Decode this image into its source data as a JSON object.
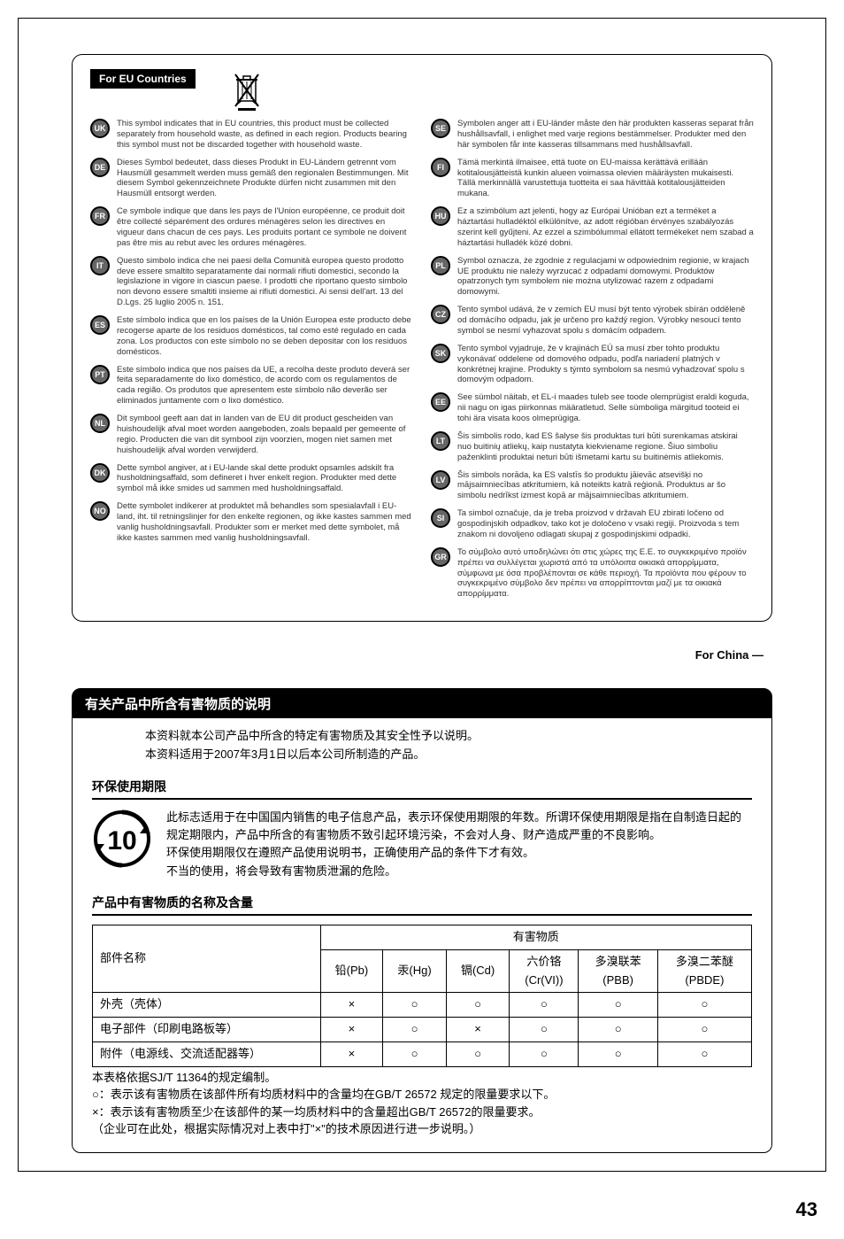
{
  "eu": {
    "header": "For EU Countries",
    "left": [
      {
        "code": "UK",
        "text": "This symbol indicates that in EU countries, this product must be collected separately from household waste, as defined in each region. Products bearing this symbol must not be discarded together with household waste."
      },
      {
        "code": "DE",
        "text": "Dieses Symbol bedeutet, dass dieses Produkt in EU-Ländern getrennt vom Hausmüll gesammelt werden muss gemäß den regionalen Bestimmungen. Mit diesem Symbol gekennzeichnete Produkte dürfen nicht zusammen mit den Hausmüll entsorgt werden."
      },
      {
        "code": "FR",
        "text": "Ce symbole indique que dans les pays de l'Union européenne, ce produit doit être collecté séparément des ordures ménagères selon les directives en vigueur dans chacun de ces pays. Les produits portant ce symbole ne doivent pas être mis au rebut avec les ordures ménagères."
      },
      {
        "code": "IT",
        "text": "Questo simbolo indica che nei paesi della Comunità europea questo prodotto deve essere smaltito separatamente dai normali rifiuti domestici, secondo la legislazione in vigore in ciascun paese. I prodotti che riportano questo simbolo non devono essere smaltiti insieme ai rifiuti domestici. Ai sensi dell'art. 13 del D.Lgs. 25 luglio 2005 n. 151."
      },
      {
        "code": "ES",
        "text": "Este símbolo indica que en los países de la Unión Europea este producto debe recogerse aparte de los residuos domésticos, tal como esté regulado en cada zona. Los productos con este símbolo no se deben depositar con los residuos domésticos."
      },
      {
        "code": "PT",
        "text": "Este símbolo indica que nos países da UE, a recolha deste produto deverá ser feita separadamente do lixo doméstico, de acordo com os regulamentos de cada região. Os produtos que apresentem este símbolo não deverão ser eliminados juntamente com o lixo doméstico."
      },
      {
        "code": "NL",
        "text": "Dit symbool geeft aan dat in landen van de EU dit product gescheiden van huishoudelijk afval moet worden aangeboden, zoals bepaald per gemeente of regio. Producten die van dit symbool zijn voorzien, mogen niet samen met huishoudelijk afval worden verwijderd."
      },
      {
        "code": "DK",
        "text": "Dette symbol angiver, at i EU-lande skal dette produkt opsamles adskilt fra husholdningsaffald, som defineret i hver enkelt region. Produkter med dette symbol må ikke smides ud sammen med husholdningsaffald."
      },
      {
        "code": "NO",
        "text": "Dette symbolet indikerer at produktet må behandles som spesialavfall i EU-land, iht. til retningslinjer for den enkelte regionen, og ikke kastes sammen med vanlig husholdningsavfall. Produkter som er merket med dette symbolet, må ikke kastes sammen med vanlig husholdningsavfall."
      }
    ],
    "right": [
      {
        "code": "SE",
        "text": "Symbolen anger att i EU-länder måste den här produkten kasseras separat från hushållsavfall, i enlighet med varje regions bestämmelser. Produkter med den här symbolen får inte kasseras tillsammans med hushållsavfall."
      },
      {
        "code": "FI",
        "text": "Tämä merkintä ilmaisee, että tuote on EU-maissa kerättävä erillään kotitalousjätteistä kunkin alueen voimassa olevien määräysten mukaisesti. Tällä merkinnällä varustettuja tuotteita ei saa hävittää kotitalousjätteiden mukana."
      },
      {
        "code": "HU",
        "text": "Ez a szimbólum azt jelenti, hogy az Európai Unióban ezt a terméket a háztartási hulladéktól elkülönítve, az adott régióban érvényes szabályozás szerint kell gyűjteni. Az ezzel a szimbólummal ellátott termékeket nem szabad a háztartási hulladék közé dobni."
      },
      {
        "code": "PL",
        "text": "Symbol oznacza, że zgodnie z regulacjami w odpowiednim regionie, w krajach UE produktu nie należy wyrzucać z odpadami domowymi. Produktów opatrzonych tym symbolem nie można utylizować razem z odpadami domowymi."
      },
      {
        "code": "CZ",
        "text": "Tento symbol udává, že v zemích EU musí být tento výrobek sbírán odděleně od domácího odpadu, jak je určeno pro každý region. Výrobky nesoucí tento symbol se nesmí vyhazovat spolu s domácím odpadem."
      },
      {
        "code": "SK",
        "text": "Tento symbol vyjadruje, že v krajinách EÚ sa musí zber tohto produktu vykonávať oddelene od domového odpadu, podľa nariadení platných v konkrétnej krajine. Produkty s týmto symbolom sa nesmú vyhadzovať spolu s domovým odpadom."
      },
      {
        "code": "EE",
        "text": "See sümbol näitab, et EL-i maades tuleb see toode olemprügist eraldi koguda, nii nagu on igas piirkonnas määratletud. Selle sümboliga märgitud tooteid ei tohi ära visata koos olmeprügiga."
      },
      {
        "code": "LT",
        "text": "Šis simbolis rodo, kad ES šalyse šis produktas turi būti surenkamas atskirai nuo buitinių atliekų, kaip nustatyta kiekviename regione. Šiuo simboliu paženklinti produktai neturi būti išmetami kartu su buitinėmis atliekomis."
      },
      {
        "code": "LV",
        "text": "Šis simbols norāda, ka ES valstīs šo produktu jāievāc atsevišķi no mājsaimniecības atkritumiem, kā noteikts katrā reģionā. Produktus ar šo simbolu nedrīkst izmest kopā ar mājsaimniecības atkritumiem."
      },
      {
        "code": "SI",
        "text": "Ta simbol označuje, da je treba proizvod v državah EU zbirati ločeno od gospodinjskih odpadkov, tako kot je določeno v vsaki regiji. Proizvoda s tem znakom ni dovoljeno odlagati skupaj z gospodinjskimi odpadki."
      },
      {
        "code": "GR",
        "text": "Το σύμβολο αυτό υποδηλώνει ότι στις χώρες της Ε.Ε. το συγκεκριμένο προϊόν πρέπει να συλλέγεται χωριστά από τα υπόλοιπα οικιακά απορρίμματα, σύμφωνα με όσα προβλέπονται σε κάθε περιοχή. Τα προϊόντα που φέρουν το συγκεκριμένο σύμβολο δεν πρέπει να απορρίπτονται μαζί με τα οικιακά απορρίμματα."
      }
    ]
  },
  "china": {
    "label": "For China",
    "title": "有关产品中所含有害物质的说明",
    "intro1": "本资料就本公司产品中所含的特定有害物质及其安全性予以说明。",
    "intro2": "本资料适用于2007年3月1日以后本公司所制造的产品。",
    "envHead": "环保使用期限",
    "envNum": "10",
    "envP1": "此标志适用于在中国国内销售的电子信息产品，表示环保使用期限的年数。所谓环保使用期限是指在自制造日起的规定期限内，产品中所含的有害物质不致引起环境污染，不会对人身、财产造成严重的不良影响。",
    "envP2": "环保使用期限仅在遵照产品使用说明书，正确使用产品的条件下才有效。",
    "envP3": "不当的使用，将会导致有害物质泄漏的危险。",
    "tableHead": "产品中有害物质的名称及含量",
    "table": {
      "colGroupLabel": "有害物质",
      "partLabel": "部件名称",
      "cols": [
        "铅(Pb)",
        "汞(Hg)",
        "镉(Cd)",
        "六价铬\n(Cr(VI))",
        "多溴联苯\n(PBB)",
        "多溴二苯醚\n(PBDE)"
      ],
      "rows": [
        {
          "name": "外壳（壳体）",
          "vals": [
            "×",
            "○",
            "○",
            "○",
            "○",
            "○"
          ]
        },
        {
          "name": "电子部件（印刷电路板等）",
          "vals": [
            "×",
            "○",
            "×",
            "○",
            "○",
            "○"
          ]
        },
        {
          "name": "附件（电源线、交流适配器等）",
          "vals": [
            "×",
            "○",
            "○",
            "○",
            "○",
            "○"
          ]
        }
      ]
    },
    "note1": "本表格依据SJ/T 11364的规定编制。",
    "note2": "○：表示该有害物质在该部件所有均质材料中的含量均在GB/T 26572 规定的限量要求以下。",
    "note3": "×：表示该有害物质至少在该部件的某一均质材料中的含量超出GB/T 26572的限量要求。",
    "note4": "（企业可在此处，根据实际情况对上表中打\"×\"的技术原因进行进一步说明。）"
  },
  "pageNum": "43"
}
